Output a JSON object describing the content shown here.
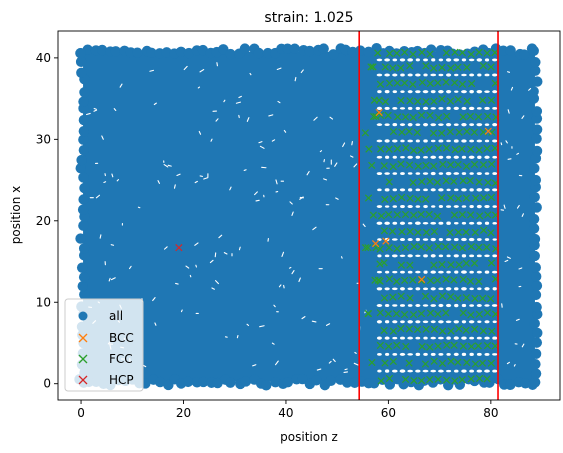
{
  "chart_data": {
    "type": "scatter",
    "title": "strain: 1.025",
    "xlabel": "position z",
    "ylabel": "position x",
    "xlim": [
      -4.5,
      93.5
    ],
    "ylim": [
      -2,
      43.3
    ],
    "xticks": [
      0,
      20,
      40,
      60,
      80
    ],
    "yticks": [
      0,
      10,
      20,
      30,
      40
    ],
    "grid": false,
    "legend_position": "lower left",
    "bulk_region": {
      "z_range": [
        0,
        89
      ],
      "x_range": [
        0,
        41
      ]
    },
    "vertical_lines": [
      {
        "x": 54.3,
        "color": "#ff0000"
      },
      {
        "x": 81.4,
        "color": "#ff0000"
      }
    ],
    "series": [
      {
        "name": "all",
        "marker": "circle",
        "color": "#1f77b4",
        "description": "dense filled cloud covering z 0–89, x 0–41"
      },
      {
        "name": "BCC",
        "marker": "x",
        "color": "#ff7f0e",
        "points": [
          [
            57.5,
            17.2
          ],
          [
            59.5,
            17.5
          ],
          [
            58.2,
            33.3
          ],
          [
            66.5,
            12.8
          ],
          [
            79.5,
            31.0
          ]
        ]
      },
      {
        "name": "FCC",
        "marker": "x",
        "color": "#2ca02c",
        "layers_x": [
          0.5,
          2.6,
          4.6,
          6.6,
          8.6,
          10.6,
          12.7,
          14.7,
          16.7,
          18.7,
          20.7,
          22.8,
          24.8,
          26.8,
          28.8,
          30.8,
          32.8,
          34.8,
          36.9,
          38.9,
          40.6
        ],
        "z_range": [
          58.5,
          81
        ]
      },
      {
        "name": "HCP",
        "marker": "x",
        "color": "#d62728",
        "points": [
          [
            19.1,
            16.7
          ]
        ]
      }
    ]
  }
}
